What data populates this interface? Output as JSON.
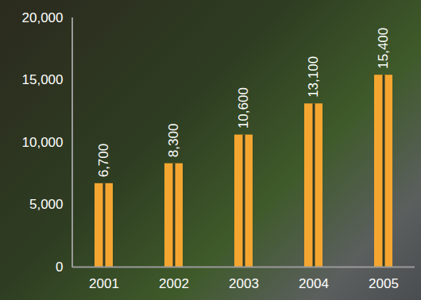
{
  "chart_data": {
    "type": "bar",
    "categories": [
      "2001",
      "2002",
      "2003",
      "2004",
      "2005"
    ],
    "values": [
      6700,
      8300,
      10600,
      13100,
      15400
    ],
    "value_labels": [
      "6,700",
      "8,300",
      "10,600",
      "13,100",
      "15,400"
    ],
    "color": "#f5a630",
    "ylim": [
      0,
      20000
    ],
    "yticks": [
      0,
      {
        "value": 5000,
        "label": "5,000"
      },
      {
        "value": 10000,
        "label": "10,000"
      },
      {
        "value": 15000,
        "label": "15,000"
      },
      {
        "value": 20000,
        "label": "20,000"
      }
    ],
    "grid": false,
    "data_labels": true
  }
}
